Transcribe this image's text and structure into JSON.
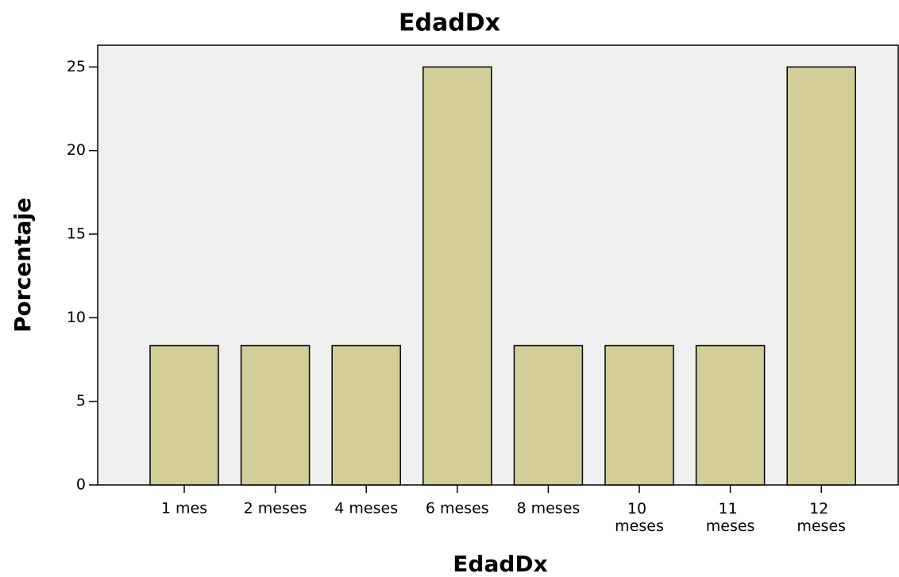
{
  "chart_data": {
    "type": "bar",
    "title": "EdadDx",
    "x_label": "EdadDx",
    "y_label": "Porcentaje",
    "categories": [
      "1 mes",
      "2 meses",
      "4 meses",
      "6 meses",
      "8 meses",
      "10 meses",
      "11 meses",
      "12 meses"
    ],
    "values": [
      8.33,
      8.33,
      8.33,
      25,
      8.33,
      8.33,
      8.33,
      25
    ],
    "color": "#d3ce97",
    "ylim": [
      0,
      26.3
    ],
    "yticks": [
      0,
      5,
      10,
      15,
      20,
      25
    ],
    "grid": false
  }
}
